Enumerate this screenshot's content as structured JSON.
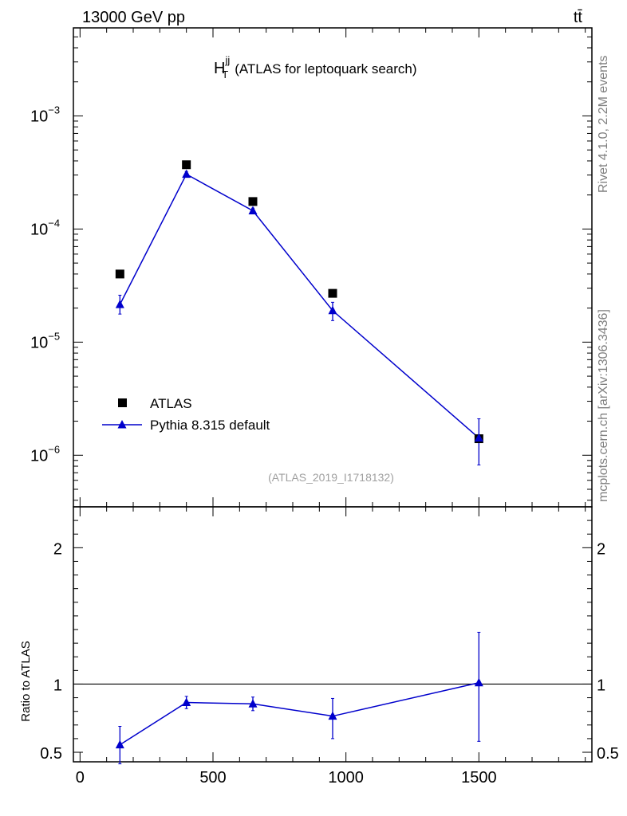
{
  "header": {
    "beam_label": "13000 GeV pp",
    "process_label": "tt̄"
  },
  "side_labels": {
    "rivet": "Rivet 4.1.0,  2.2M events",
    "site": "mcplots.cern.ch [arXiv:1306.3436]"
  },
  "chart_data": [
    {
      "type": "line",
      "panel": "main",
      "title": "H_T^jj (ATLAS for leptoquark search)",
      "title_main": "H",
      "title_sup": "jj",
      "title_sub": "T",
      "title_rest": "(ATLAS for leptoquark search)",
      "analysis_id": "(ATLAS_2019_I1718132)",
      "y_scale": "log",
      "xlim": [
        -25,
        1925
      ],
      "ylim": [
        3.5e-07,
        0.006
      ],
      "y_tick_labels": [
        {
          "value": 0.001,
          "base": "10",
          "exp": "−3"
        },
        {
          "value": 0.0001,
          "base": "10",
          "exp": "−4"
        },
        {
          "value": 1e-05,
          "base": "10",
          "exp": "−5"
        },
        {
          "value": 1e-06,
          "base": "10",
          "exp": "−6"
        }
      ],
      "legend_position": "lower-left",
      "series": [
        {
          "name": "ATLAS",
          "style": "markers",
          "marker": "square",
          "color": "#000000",
          "x": [
            150,
            400,
            650,
            950,
            1500
          ],
          "y": [
            4e-05,
            0.00037,
            0.000175,
            2.7e-05,
            1.4e-06
          ]
        },
        {
          "name": "Pythia 8.315 default",
          "style": "line+markers",
          "marker": "triangle",
          "color": "#0000cc",
          "x": [
            150,
            400,
            650,
            950,
            1500
          ],
          "y": [
            2.15e-05,
            0.000305,
            0.000145,
            1.9e-05,
            1.42e-06
          ],
          "y_err_low": [
            3.8e-06,
            1.8e-05,
            8e-06,
            3.5e-06,
            6e-07
          ],
          "y_err_high": [
            4.5e-06,
            1.8e-05,
            8e-06,
            3.5e-06,
            6.8e-07
          ]
        }
      ]
    },
    {
      "type": "line",
      "panel": "ratio",
      "ylabel": "Ratio to ATLAS",
      "xlim": [
        -25,
        1925
      ],
      "ylim": [
        0.43,
        2.3
      ],
      "x_ticks": [
        0,
        500,
        1000,
        1500
      ],
      "y_ticks": [
        0.5,
        1,
        2
      ],
      "y_tick_labels": [
        "0.5",
        "1",
        "2"
      ],
      "reference_line": 1,
      "series": [
        {
          "name": "Pythia 8.315 default",
          "color": "#0000cc",
          "x": [
            150,
            400,
            650,
            950,
            1500
          ],
          "y": [
            0.555,
            0.865,
            0.855,
            0.765,
            1.01
          ],
          "y_err_low": [
            0.14,
            0.045,
            0.05,
            0.165,
            0.43
          ],
          "y_err_high": [
            0.135,
            0.045,
            0.05,
            0.13,
            0.37
          ]
        }
      ]
    }
  ]
}
